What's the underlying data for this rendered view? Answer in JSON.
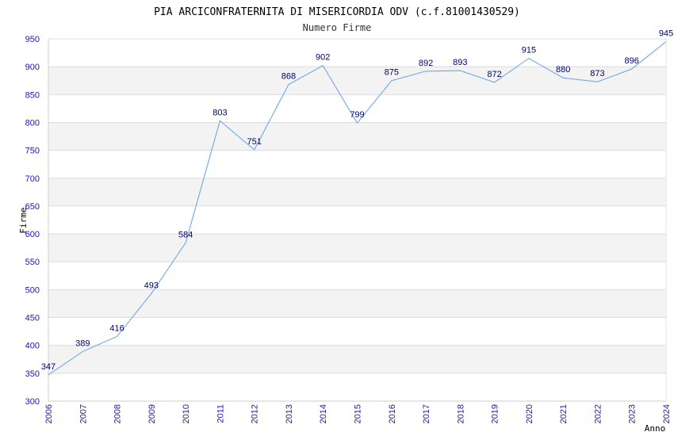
{
  "chart_data": {
    "type": "line",
    "title": "PIA ARCICONFRATERNITA DI MISERICORDIA ODV (c.f.81001430529)",
    "subtitle": "Numero Firme",
    "xlabel": "Anno",
    "ylabel": "Firme",
    "ylim": [
      300,
      950
    ],
    "yticks": [
      300,
      350,
      400,
      450,
      500,
      550,
      600,
      650,
      700,
      750,
      800,
      850,
      900,
      950
    ],
    "grid": true,
    "categories": [
      "2006",
      "2007",
      "2008",
      "2009",
      "2010",
      "2011",
      "2012",
      "2013",
      "2014",
      "2015",
      "2016",
      "2017",
      "2018",
      "2019",
      "2020",
      "2021",
      "2022",
      "2023",
      "2024"
    ],
    "series": [
      {
        "values": [
          347,
          389,
          416,
          493,
          584,
          803,
          751,
          868,
          902,
          799,
          875,
          892,
          893,
          872,
          915,
          880,
          873,
          896,
          945
        ]
      }
    ],
    "colors": {
      "line": "#6fa8e8",
      "band": "#f3f3f3",
      "grid": "#dcdcdc",
      "tick": "#1a1aa6",
      "label": "#00006e"
    }
  }
}
